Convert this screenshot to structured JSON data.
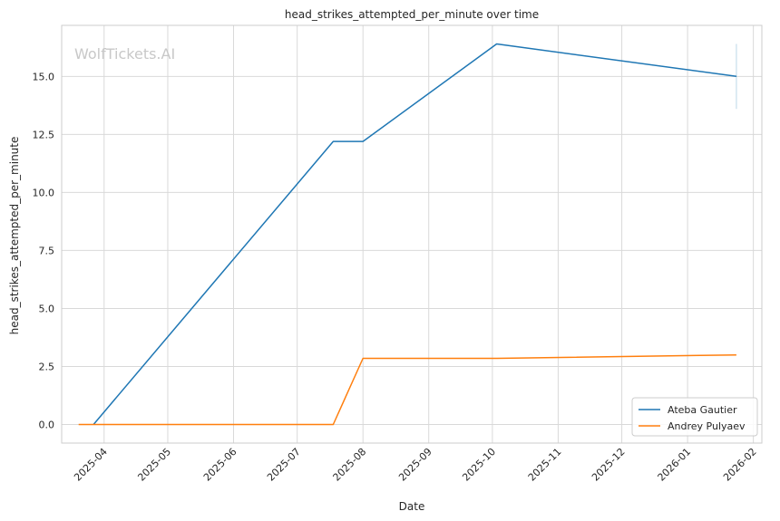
{
  "chart_data": {
    "type": "line",
    "title": "head_strikes_attempted_per_minute over time",
    "xlabel": "Date",
    "ylabel": "head_strikes_attempted_per_minute",
    "watermark": "WolfTickets.AI",
    "x_ticks": [
      "2025-04",
      "2025-05",
      "2025-06",
      "2025-07",
      "2025-08",
      "2025-09",
      "2025-10",
      "2025-11",
      "2025-12",
      "2026-01",
      "2026-02"
    ],
    "y_ticks": [
      "0.0",
      "2.5",
      "5.0",
      "7.5",
      "10.0",
      "12.5",
      "15.0"
    ],
    "xlim": [
      "2025-03-12",
      "2026-02-05"
    ],
    "ylim": [
      -0.8,
      17.2
    ],
    "grid": true,
    "legend_position": "lower-right",
    "series": [
      {
        "name": "Ateba Gautier",
        "color": "#1f77b4",
        "points": [
          {
            "x": "2025-03-27",
            "y": 0.0
          },
          {
            "x": "2025-07-18",
            "y": 12.2
          },
          {
            "x": "2025-08-01",
            "y": 12.2
          },
          {
            "x": "2025-10-03",
            "y": 16.4
          },
          {
            "x": "2026-01-24",
            "y": 15.0
          }
        ],
        "error_bars": [
          {
            "x": "2026-01-24",
            "low": 13.6,
            "high": 16.4
          }
        ]
      },
      {
        "name": "Andrey Pulyaev",
        "color": "#ff7f0e",
        "points": [
          {
            "x": "2025-03-20",
            "y": 0.0
          },
          {
            "x": "2025-07-18",
            "y": 0.0
          },
          {
            "x": "2025-08-01",
            "y": 2.85
          },
          {
            "x": "2025-10-03",
            "y": 2.85
          },
          {
            "x": "2026-01-24",
            "y": 3.0
          }
        ]
      }
    ]
  }
}
